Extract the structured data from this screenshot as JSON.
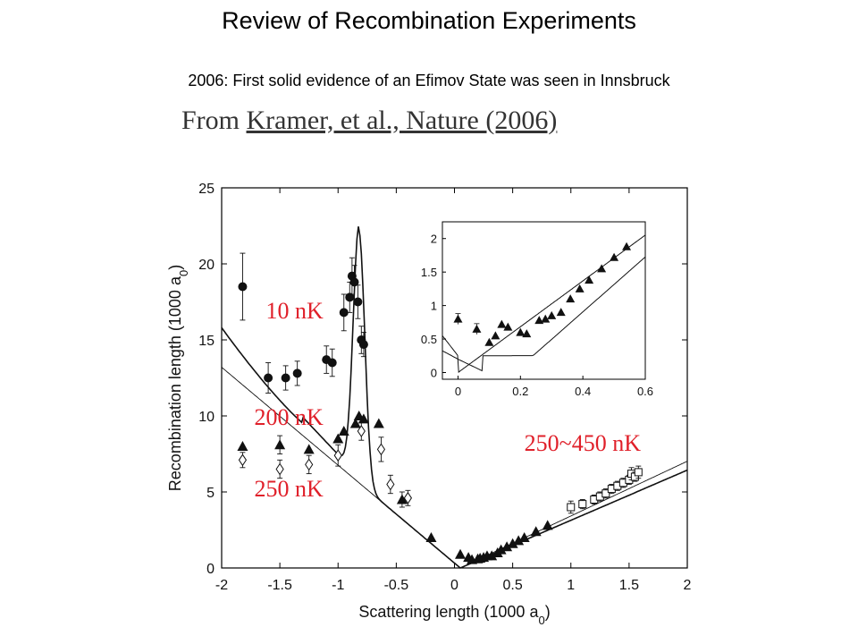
{
  "slide": {
    "title": "Review of Recombination Experiments",
    "subtitle": "2006: First solid evidence of an Efimov State was seen in Innsbruck",
    "citation_prefix": "From ",
    "citation_ref": "Kramer, et al., Nature (2006)"
  },
  "colors": {
    "annotation": "#e0202a",
    "data": "#111111",
    "frame": "#000000"
  },
  "chart_data": [
    {
      "type": "scatter",
      "xlabel": "Scattering length (1000 a",
      "xlabel_sub": "0",
      "xlabel_end": ")",
      "ylabel": "Recombination length (1000 a",
      "ylabel_sub": "0",
      "ylabel_end": ")",
      "xlim": [
        -2,
        2
      ],
      "ylim": [
        0,
        25
      ],
      "xticks": [
        -2,
        -1.5,
        -1,
        -0.5,
        0,
        0.5,
        1,
        1.5,
        2
      ],
      "xtick_labels": [
        "-2",
        "-1.5",
        "-1",
        "-0.5",
        "0",
        "0.5",
        "1",
        "1.5",
        "2"
      ],
      "yticks": [
        0,
        5,
        10,
        15,
        20,
        25
      ],
      "ytick_labels": [
        "0",
        "5",
        "10",
        "15",
        "20",
        "25"
      ],
      "grid": false,
      "annotations": [
        {
          "text": "10 nK",
          "x": -1.62,
          "y": 16.4
        },
        {
          "text": "200 nK",
          "x": -1.72,
          "y": 9.4
        },
        {
          "text": "250 nK",
          "x": -1.72,
          "y": 4.7
        },
        {
          "text": "250~450 nK",
          "x": 0.6,
          "y": 7.7
        }
      ],
      "series": [
        {
          "name": "10 nK",
          "marker": "circle",
          "points": [
            [
              -1.82,
              18.5
            ],
            [
              -1.6,
              12.5
            ],
            [
              -1.45,
              12.5
            ],
            [
              -1.35,
              12.8
            ],
            [
              -1.1,
              13.7
            ],
            [
              -1.05,
              13.5
            ],
            [
              -0.95,
              16.8
            ],
            [
              -0.9,
              17.8
            ],
            [
              -0.88,
              19.2
            ],
            [
              -0.86,
              18.8
            ],
            [
              -0.83,
              17.5
            ],
            [
              -0.8,
              15.0
            ],
            [
              -0.78,
              14.7
            ]
          ],
          "errors": [
            2.2,
            1.0,
            0.8,
            0.8,
            0.9,
            0.9,
            1.2,
            1.0,
            1.2,
            1.1,
            1.1,
            0.9,
            0.8
          ]
        },
        {
          "name": "200 nK",
          "marker": "triangle",
          "points": [
            [
              -1.82,
              8.0
            ],
            [
              -1.5,
              8.1
            ],
            [
              -1.25,
              7.8
            ],
            [
              -1.0,
              8.5
            ],
            [
              -0.95,
              9.0
            ],
            [
              -0.85,
              9.5
            ],
            [
              -0.82,
              10.0
            ],
            [
              -0.78,
              9.8
            ],
            [
              -0.65,
              9.5
            ],
            [
              -0.45,
              4.5
            ],
            [
              -0.2,
              2.0
            ],
            [
              0.05,
              0.9
            ],
            [
              0.12,
              0.7
            ],
            [
              0.15,
              0.55
            ],
            [
              0.2,
              0.6
            ],
            [
              0.22,
              0.65
            ],
            [
              0.25,
              0.7
            ],
            [
              0.28,
              0.8
            ],
            [
              0.32,
              0.8
            ],
            [
              0.37,
              1.0
            ],
            [
              0.4,
              1.2
            ],
            [
              0.45,
              1.4
            ],
            [
              0.5,
              1.6
            ],
            [
              0.55,
              1.8
            ],
            [
              0.6,
              2.0
            ],
            [
              0.7,
              2.4
            ],
            [
              0.8,
              2.8
            ]
          ],
          "errors": [
            0,
            0.6,
            0,
            0,
            0,
            0,
            0,
            0,
            0,
            0.5,
            0,
            0,
            0,
            0,
            0,
            0,
            0,
            0,
            0,
            0,
            0,
            0,
            0,
            0,
            0,
            0,
            0
          ]
        },
        {
          "name": "250 nK",
          "marker": "diamond",
          "points": [
            [
              -1.82,
              7.1
            ],
            [
              -1.5,
              6.5
            ],
            [
              -1.25,
              6.8
            ],
            [
              -1.0,
              7.4
            ],
            [
              -0.8,
              9.0
            ],
            [
              -0.63,
              7.8
            ],
            [
              -0.55,
              5.5
            ],
            [
              -0.4,
              4.6
            ]
          ],
          "errors": [
            0.5,
            0.6,
            0.6,
            0.7,
            0.6,
            0.8,
            0.6,
            0.5
          ]
        },
        {
          "name": "250~450 nK",
          "marker": "square",
          "points": [
            [
              1.0,
              4.0
            ],
            [
              1.1,
              4.2
            ],
            [
              1.2,
              4.5
            ],
            [
              1.25,
              4.7
            ],
            [
              1.3,
              4.9
            ],
            [
              1.35,
              5.2
            ],
            [
              1.4,
              5.4
            ],
            [
              1.45,
              5.6
            ],
            [
              1.5,
              5.8
            ],
            [
              1.52,
              6.2
            ],
            [
              1.55,
              6.0
            ],
            [
              1.58,
              6.3
            ]
          ],
          "errors": [
            0.4,
            0.3,
            0.3,
            0.3,
            0.3,
            0.3,
            0.3,
            0.3,
            0.3,
            0.4,
            0.3,
            0.4
          ]
        }
      ],
      "inset": {
        "type": "scatter",
        "xlim": [
          -0.05,
          0.6
        ],
        "ylim": [
          -0.1,
          2.25
        ],
        "xticks": [
          0,
          0.2,
          0.4,
          0.6
        ],
        "xtick_labels": [
          "0",
          "0.2",
          "0.4",
          "0.6"
        ],
        "yticks": [
          0,
          0.5,
          1,
          1.5,
          2
        ],
        "ytick_labels": [
          "0",
          "0.5",
          "1",
          "1.5",
          "2"
        ],
        "points": [
          [
            0,
            0.8
          ],
          [
            0.06,
            0.65
          ],
          [
            0.1,
            0.45
          ],
          [
            0.12,
            0.55
          ],
          [
            0.14,
            0.72
          ],
          [
            0.16,
            0.68
          ],
          [
            0.2,
            0.6
          ],
          [
            0.22,
            0.58
          ],
          [
            0.26,
            0.78
          ],
          [
            0.28,
            0.8
          ],
          [
            0.3,
            0.85
          ],
          [
            0.33,
            0.9
          ],
          [
            0.36,
            1.1
          ],
          [
            0.39,
            1.25
          ],
          [
            0.42,
            1.38
          ],
          [
            0.46,
            1.55
          ],
          [
            0.5,
            1.72
          ],
          [
            0.54,
            1.88
          ]
        ],
        "errors": [
          0.08,
          0.08,
          0,
          0,
          0,
          0,
          0,
          0,
          0,
          0,
          0,
          0,
          0,
          0,
          0,
          0,
          0,
          0
        ]
      }
    }
  ]
}
